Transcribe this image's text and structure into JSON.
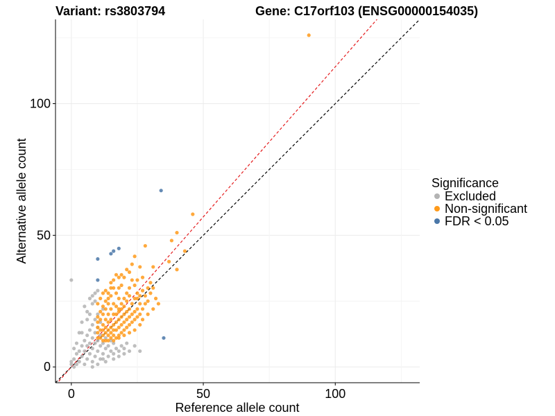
{
  "header": {
    "variant_title": "Variant: rs3803794",
    "gene_title": "Gene: C17orf103 (ENSG00000154035)"
  },
  "chart_data": {
    "type": "scatter",
    "title": "Variant: rs3803794 Gene: C17orf103 (ENSG00000154035)",
    "xlabel": "Reference allele count",
    "ylabel": "Alternative allele count",
    "xlim": [
      -6,
      132
    ],
    "ylim": [
      -6,
      132
    ],
    "x_ticks": [
      {
        "value": 0,
        "label": "0"
      },
      {
        "value": 50,
        "label": "50"
      },
      {
        "value": 100,
        "label": "100"
      }
    ],
    "y_ticks": [
      {
        "value": 0,
        "label": "0"
      },
      {
        "value": 50,
        "label": "50"
      },
      {
        "value": 100,
        "label": "100"
      }
    ],
    "grid": true,
    "reference_lines": [
      {
        "name": "identity",
        "slope": 1.0,
        "intercept": 0,
        "color": "#000000",
        "style": "dashed"
      },
      {
        "name": "fitted",
        "slope": 1.14,
        "intercept": 0,
        "color": "#e41a1c",
        "style": "dashed"
      }
    ],
    "legend": {
      "title": "Significance",
      "position": "right",
      "entries": [
        {
          "label": "Excluded",
          "color": "#b3b3b3"
        },
        {
          "label": "Non-significant",
          "color": "#ff9a1a"
        },
        {
          "label": "FDR < 0.05",
          "color": "#4a77a8"
        }
      ]
    },
    "series": [
      {
        "name": "Excluded",
        "color": "#b3b3b3",
        "points": [
          [
            0,
            33
          ],
          [
            0,
            1
          ],
          [
            0,
            2
          ],
          [
            1,
            0
          ],
          [
            1,
            3
          ],
          [
            2,
            1
          ],
          [
            2,
            5
          ],
          [
            3,
            2
          ],
          [
            3,
            6
          ],
          [
            4,
            4
          ],
          [
            4,
            8
          ],
          [
            5,
            1
          ],
          [
            5,
            6
          ],
          [
            5,
            10
          ],
          [
            6,
            3
          ],
          [
            6,
            8
          ],
          [
            6,
            12
          ],
          [
            7,
            5
          ],
          [
            7,
            9
          ],
          [
            7,
            14
          ],
          [
            8,
            2
          ],
          [
            8,
            7
          ],
          [
            8,
            11
          ],
          [
            8,
            16
          ],
          [
            9,
            4
          ],
          [
            9,
            9
          ],
          [
            9,
            13
          ],
          [
            9,
            18
          ],
          [
            10,
            6
          ],
          [
            10,
            10
          ],
          [
            10,
            15
          ],
          [
            10,
            20
          ],
          [
            11,
            3
          ],
          [
            11,
            8
          ],
          [
            11,
            12
          ],
          [
            11,
            17
          ],
          [
            12,
            5
          ],
          [
            12,
            9
          ],
          [
            12,
            22
          ],
          [
            13,
            7
          ],
          [
            13,
            11
          ],
          [
            14,
            4
          ],
          [
            14,
            8
          ],
          [
            15,
            6
          ],
          [
            15,
            10
          ],
          [
            16,
            5
          ],
          [
            16,
            9
          ],
          [
            17,
            7
          ],
          [
            18,
            6
          ],
          [
            19,
            8
          ],
          [
            20,
            7
          ],
          [
            21,
            9
          ],
          [
            22,
            6
          ],
          [
            3,
            13
          ],
          [
            4,
            17
          ],
          [
            5,
            23
          ],
          [
            6,
            21
          ],
          [
            7,
            26
          ],
          [
            8,
            24
          ],
          [
            8,
            27
          ],
          [
            9,
            28
          ],
          [
            10,
            29
          ],
          [
            9,
            25
          ],
          [
            2,
            9
          ],
          [
            1,
            7
          ],
          [
            4,
            13
          ],
          [
            6,
            18
          ],
          [
            7,
            20
          ],
          [
            18,
            4
          ],
          [
            20,
            5
          ],
          [
            24,
            8
          ],
          [
            26,
            6
          ],
          [
            16,
            3
          ],
          [
            12,
            3
          ],
          [
            13,
            2
          ],
          [
            10,
            1
          ],
          [
            8,
            0
          ]
        ]
      },
      {
        "name": "Non-significant",
        "color": "#ff9a1a",
        "points": [
          [
            90,
            126
          ],
          [
            46,
            58
          ],
          [
            40,
            51
          ],
          [
            38,
            48
          ],
          [
            43,
            44
          ],
          [
            37,
            40
          ],
          [
            40,
            37
          ],
          [
            31,
            38
          ],
          [
            28,
            46
          ],
          [
            24,
            42
          ],
          [
            26,
            38
          ],
          [
            22,
            36
          ],
          [
            20,
            34
          ],
          [
            19,
            31
          ],
          [
            23,
            33
          ],
          [
            25,
            33
          ],
          [
            27,
            34
          ],
          [
            24,
            31
          ],
          [
            22,
            30
          ],
          [
            21,
            28
          ],
          [
            18,
            30
          ],
          [
            17,
            28
          ],
          [
            16,
            30
          ],
          [
            15,
            27
          ],
          [
            14,
            26
          ],
          [
            13,
            25
          ],
          [
            12,
            23
          ],
          [
            11,
            21
          ],
          [
            10,
            19
          ],
          [
            10,
            17
          ],
          [
            10,
            15
          ],
          [
            10,
            13
          ],
          [
            10,
            11
          ],
          [
            11,
            11
          ],
          [
            12,
            10
          ],
          [
            13,
            10
          ],
          [
            14,
            10
          ],
          [
            15,
            11
          ],
          [
            16,
            10
          ],
          [
            17,
            11
          ],
          [
            18,
            12
          ],
          [
            19,
            13
          ],
          [
            20,
            14
          ],
          [
            21,
            15
          ],
          [
            22,
            16
          ],
          [
            23,
            17
          ],
          [
            24,
            18
          ],
          [
            25,
            19
          ],
          [
            26,
            20
          ],
          [
            27,
            22
          ],
          [
            28,
            24
          ],
          [
            29,
            25
          ],
          [
            30,
            28
          ],
          [
            31,
            30
          ],
          [
            27,
            29
          ],
          [
            25,
            26
          ],
          [
            23,
            24
          ],
          [
            22,
            22
          ],
          [
            21,
            21
          ],
          [
            20,
            20
          ],
          [
            19,
            19
          ],
          [
            18,
            18
          ],
          [
            17,
            17
          ],
          [
            16,
            16
          ],
          [
            15,
            15
          ],
          [
            14,
            14
          ],
          [
            13,
            13
          ],
          [
            12,
            12
          ],
          [
            11,
            14
          ],
          [
            12,
            16
          ],
          [
            13,
            18
          ],
          [
            14,
            20
          ],
          [
            15,
            22
          ],
          [
            16,
            24
          ],
          [
            17,
            23
          ],
          [
            18,
            22
          ],
          [
            19,
            24
          ],
          [
            20,
            26
          ],
          [
            21,
            25
          ],
          [
            22,
            27
          ],
          [
            18,
            26
          ],
          [
            16,
            20
          ],
          [
            15,
            18
          ],
          [
            14,
            17
          ],
          [
            13,
            15
          ],
          [
            12,
            14
          ],
          [
            17,
            14
          ],
          [
            18,
            15
          ],
          [
            19,
            16
          ],
          [
            20,
            17
          ],
          [
            21,
            18
          ],
          [
            22,
            19
          ],
          [
            23,
            20
          ],
          [
            24,
            21
          ],
          [
            25,
            22
          ],
          [
            26,
            24
          ],
          [
            14,
            12
          ],
          [
            15,
            13
          ],
          [
            16,
            14
          ],
          [
            17,
            20
          ],
          [
            18,
            21
          ],
          [
            19,
            22
          ],
          [
            20,
            23
          ],
          [
            24,
            26
          ],
          [
            25,
            28
          ],
          [
            26,
            27
          ],
          [
            28,
            27
          ],
          [
            29,
            30
          ],
          [
            30,
            32
          ],
          [
            32,
            26
          ],
          [
            33,
            24
          ],
          [
            31,
            22
          ],
          [
            29,
            20
          ],
          [
            27,
            18
          ],
          [
            26,
            16
          ],
          [
            24,
            14
          ],
          [
            22,
            13
          ],
          [
            20,
            12
          ],
          [
            18,
            11
          ],
          [
            16,
            12
          ],
          [
            14,
            24
          ],
          [
            13,
            22
          ],
          [
            12,
            20
          ],
          [
            11,
            18
          ],
          [
            10,
            24
          ],
          [
            11,
            26
          ],
          [
            12,
            28
          ],
          [
            13,
            29
          ],
          [
            15,
            32
          ],
          [
            16,
            33
          ],
          [
            18,
            34
          ],
          [
            19,
            35
          ],
          [
            21,
            37
          ],
          [
            23,
            39
          ],
          [
            17,
            35
          ],
          [
            15,
            30
          ],
          [
            14,
            28
          ]
        ]
      },
      {
        "name": "FDR < 0.05",
        "color": "#4a77a8",
        "points": [
          [
            34,
            67
          ],
          [
            18,
            45
          ],
          [
            16,
            44
          ],
          [
            15,
            43
          ],
          [
            10,
            41
          ],
          [
            10,
            33
          ],
          [
            35,
            11
          ]
        ]
      }
    ]
  }
}
